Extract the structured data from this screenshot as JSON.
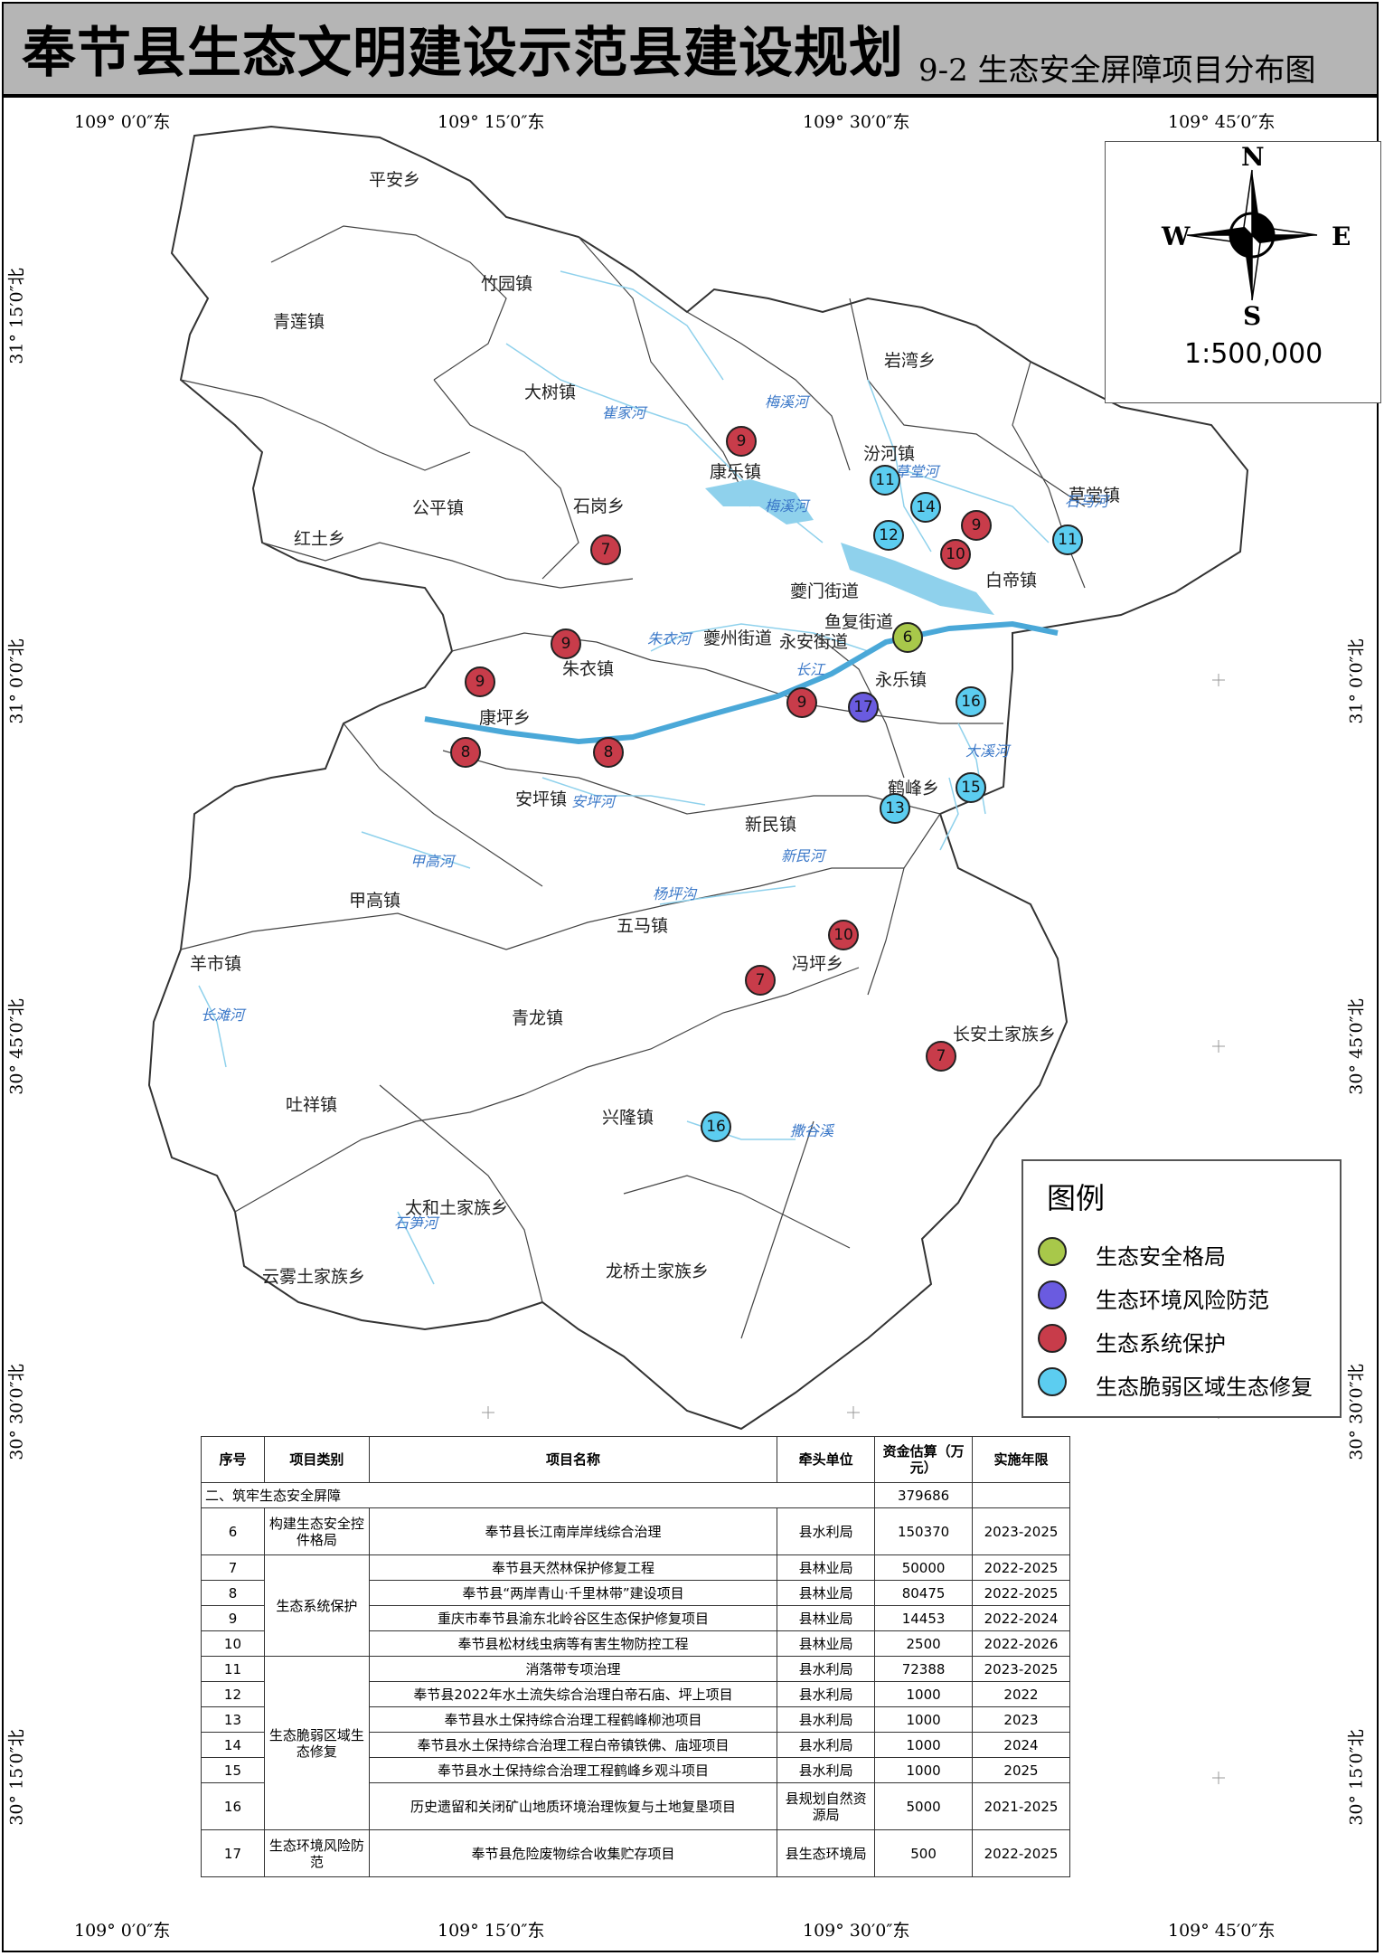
{
  "title": {
    "main": "奉节县生态文明建设示范县建设规划",
    "sub": "9-2 生态安全屏障项目分布图"
  },
  "coords": {
    "lon": [
      "109° 0′0″东",
      "109° 15′0″东",
      "109° 30′0″东",
      "109° 45′0″东"
    ],
    "lat": [
      "31° 15′0″北",
      "31° 0′0″北",
      "30° 45′0″北",
      "30° 30′0″北",
      "30° 15′0″北"
    ]
  },
  "compass": {
    "n": "N",
    "s": "S",
    "e": "E",
    "w": "W",
    "scale": "1:500,000"
  },
  "towns": [
    "平安乡",
    "竹园镇",
    "青莲镇",
    "岩湾乡",
    "大树镇",
    "汾河镇",
    "康乐镇",
    "草堂镇",
    "公平镇",
    "石岗乡",
    "红土乡",
    "白帝镇",
    "夔门街道",
    "鱼复街道",
    "夔州街道",
    "永安街道",
    "朱衣镇",
    "永乐镇",
    "康坪乡",
    "鹤峰乡",
    "安坪镇",
    "新民镇",
    "甲高镇",
    "五马镇",
    "冯坪乡",
    "羊市镇",
    "青龙镇",
    "长安土家族乡",
    "吐祥镇",
    "兴隆镇",
    "太和土家族乡",
    "云雾土家族乡",
    "龙桥土家族乡"
  ],
  "rivers": [
    "梅溪河",
    "崔家河",
    "梅溪河",
    "草堂河",
    "石马河",
    "朱衣河",
    "长江",
    "大溪河",
    "安坪河",
    "甲高河",
    "新民河",
    "杨坪沟",
    "长滩河",
    "撒谷溪",
    "石笋河"
  ],
  "legend": {
    "title": "图例",
    "items": [
      {
        "label": "生态安全格局",
        "color": "#a8c84a"
      },
      {
        "label": "生态环境风险防范",
        "color": "#6a5be0"
      },
      {
        "label": "生态系统保护",
        "color": "#c83c4a"
      },
      {
        "label": "生态脆弱区域生态修复",
        "color": "#5ccdf0"
      }
    ]
  },
  "markers": [
    {
      "num": "9",
      "cat": 2
    },
    {
      "num": "11",
      "cat": 3
    },
    {
      "num": "14",
      "cat": 3
    },
    {
      "num": "9",
      "cat": 2
    },
    {
      "num": "12",
      "cat": 3
    },
    {
      "num": "10",
      "cat": 2
    },
    {
      "num": "11",
      "cat": 3
    },
    {
      "num": "7",
      "cat": 2
    },
    {
      "num": "6",
      "cat": 0
    },
    {
      "num": "9",
      "cat": 2
    },
    {
      "num": "9",
      "cat": 2
    },
    {
      "num": "9",
      "cat": 2
    },
    {
      "num": "17",
      "cat": 1
    },
    {
      "num": "16",
      "cat": 3
    },
    {
      "num": "8",
      "cat": 2
    },
    {
      "num": "8",
      "cat": 2
    },
    {
      "num": "15",
      "cat": 3
    },
    {
      "num": "13",
      "cat": 3
    },
    {
      "num": "10",
      "cat": 2
    },
    {
      "num": "7",
      "cat": 2
    },
    {
      "num": "7",
      "cat": 2
    },
    {
      "num": "16",
      "cat": 3
    }
  ],
  "table": {
    "headers": [
      "序号",
      "项目类别",
      "项目名称",
      "牵头单位",
      "资金估算（万元）",
      "实施年限"
    ],
    "section": {
      "label": "二、筑牢生态安全屏障",
      "total": "379686"
    },
    "cat1": "构建生态安全控件格局",
    "cat2": "生态系统保护",
    "cat3": "生态脆弱区域生态修复",
    "cat4": "生态环境风险防范",
    "rows": [
      {
        "no": "6",
        "name": "奉节县长江南岸岸线综合治理",
        "unit": "县水利局",
        "fund": "150370",
        "years": "2023-2025"
      },
      {
        "no": "7",
        "name": "奉节县天然林保护修复工程",
        "unit": "县林业局",
        "fund": "50000",
        "years": "2022-2025"
      },
      {
        "no": "8",
        "name": "奉节县“两岸青山·千里林带”建设项目",
        "unit": "县林业局",
        "fund": "80475",
        "years": "2022-2025"
      },
      {
        "no": "9",
        "name": "重庆市奉节县渝东北岭谷区生态保护修复项目",
        "unit": "县林业局",
        "fund": "14453",
        "years": "2022-2024"
      },
      {
        "no": "10",
        "name": "奉节县松材线虫病等有害生物防控工程",
        "unit": "县林业局",
        "fund": "2500",
        "years": "2022-2026"
      },
      {
        "no": "11",
        "name": "消落带专项治理",
        "unit": "县水利局",
        "fund": "72388",
        "years": "2023-2025"
      },
      {
        "no": "12",
        "name": "奉节县2022年水土流失综合治理白帝石庙、坪上项目",
        "unit": "县水利局",
        "fund": "1000",
        "years": "2022"
      },
      {
        "no": "13",
        "name": "奉节县水土保持综合治理工程鹤峰柳池项目",
        "unit": "县水利局",
        "fund": "1000",
        "years": "2023"
      },
      {
        "no": "14",
        "name": "奉节县水土保持综合治理工程白帝镇铁佛、庙垭项目",
        "unit": "县水利局",
        "fund": "1000",
        "years": "2024"
      },
      {
        "no": "15",
        "name": "奉节县水土保持综合治理工程鹤峰乡观斗项目",
        "unit": "县水利局",
        "fund": "1000",
        "years": "2025"
      },
      {
        "no": "16",
        "name": "历史遗留和关闭矿山地质环境治理恢复与土地复垦项目",
        "unit": "县规划自然资源局",
        "fund": "5000",
        "years": "2021-2025"
      },
      {
        "no": "17",
        "name": "奉节县危险废物综合收集贮存项目",
        "unit": "县生态环境局",
        "fund": "500",
        "years": "2022-2025"
      }
    ]
  }
}
